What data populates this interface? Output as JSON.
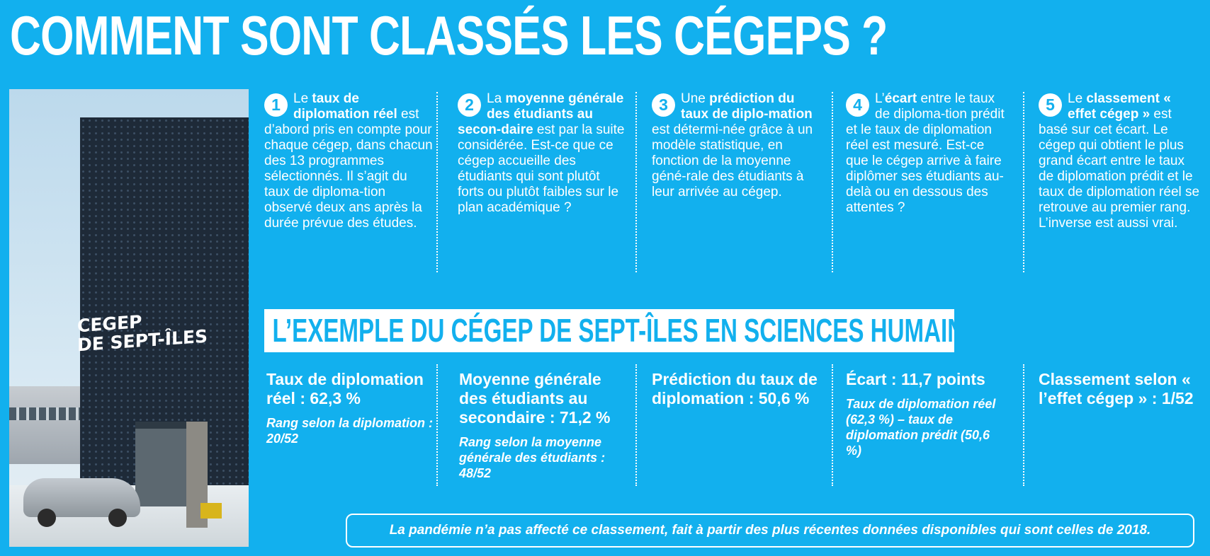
{
  "title": "COMMENT SONT CLASSÉS LES CÉGEPS ?",
  "photo": {
    "sign": "CEGEP\nDE SEPT-ÎLES"
  },
  "steps": [
    {
      "number": "1",
      "parts": [
        {
          "t": "Le ",
          "b": false
        },
        {
          "t": "taux de diplomation réel",
          "b": true
        },
        {
          "t": " est d’abord pris en compte pour chaque cégep, dans chacun des 13 programmes sélectionnés. Il s’agit du taux de diploma-tion observé deux ans après la durée prévue des études.",
          "b": false
        }
      ]
    },
    {
      "number": "2",
      "parts": [
        {
          "t": "La ",
          "b": false
        },
        {
          "t": "moyenne générale des étudiants au secon-daire",
          "b": true
        },
        {
          "t": " est par la suite considérée. Est-ce que ce cégep accueille des étudiants qui sont plutôt forts ou plutôt faibles sur le plan académique ?",
          "b": false
        }
      ]
    },
    {
      "number": "3",
      "parts": [
        {
          "t": "Une ",
          "b": false
        },
        {
          "t": "prédiction du taux de diplo-mation",
          "b": true
        },
        {
          "t": " est détermi-née grâce à un modèle statistique, en fonction de la moyenne géné-rale des étudiants à leur arrivée au cégep.",
          "b": false
        }
      ]
    },
    {
      "number": "4",
      "parts": [
        {
          "t": "L’",
          "b": false
        },
        {
          "t": "écart",
          "b": true
        },
        {
          "t": " entre le taux de diploma-tion prédit et le taux de diplomation réel est mesuré. Est-ce que le cégep arrive à faire diplômer ses étudiants au-delà ou en dessous des attentes ?",
          "b": false
        }
      ]
    },
    {
      "number": "5",
      "parts": [
        {
          "t": "Le ",
          "b": false
        },
        {
          "t": "classement « effet cégep »",
          "b": true
        },
        {
          "t": " est basé sur cet écart. Le cégep qui obtient le plus grand écart entre le taux de diplomation prédit et le taux de diplomation réel se retrouve au premier rang. L’inverse est aussi vrai.",
          "b": false
        }
      ]
    }
  ],
  "subhead": "L’EXEMPLE DU CÉGEP DE SEPT-ÎLES EN SCIENCES HUMAINES",
  "stats": [
    {
      "main": "Taux de diplomation réel : 62,3 %",
      "sub": "Rang selon la diplomation : 20/52"
    },
    {
      "main": "Moyenne générale des étudiants au secondaire : 71,2 %",
      "sub": "Rang selon la moyenne générale des étudiants : 48/52"
    },
    {
      "main": "Prédiction du taux de diplomation : 50,6 %",
      "sub": ""
    },
    {
      "main": "Écart : 11,7 points",
      "sub": "Taux de diplomation réel (62,3 %) – taux de diplomation prédit (50,6 %)"
    },
    {
      "main": "Classement selon « l’effet cégep » : 1/52",
      "sub": ""
    }
  ],
  "footer": "La pandémie n’a pas affecté ce classement, fait à partir des plus récentes données disponibles qui sont celles de 2018."
}
